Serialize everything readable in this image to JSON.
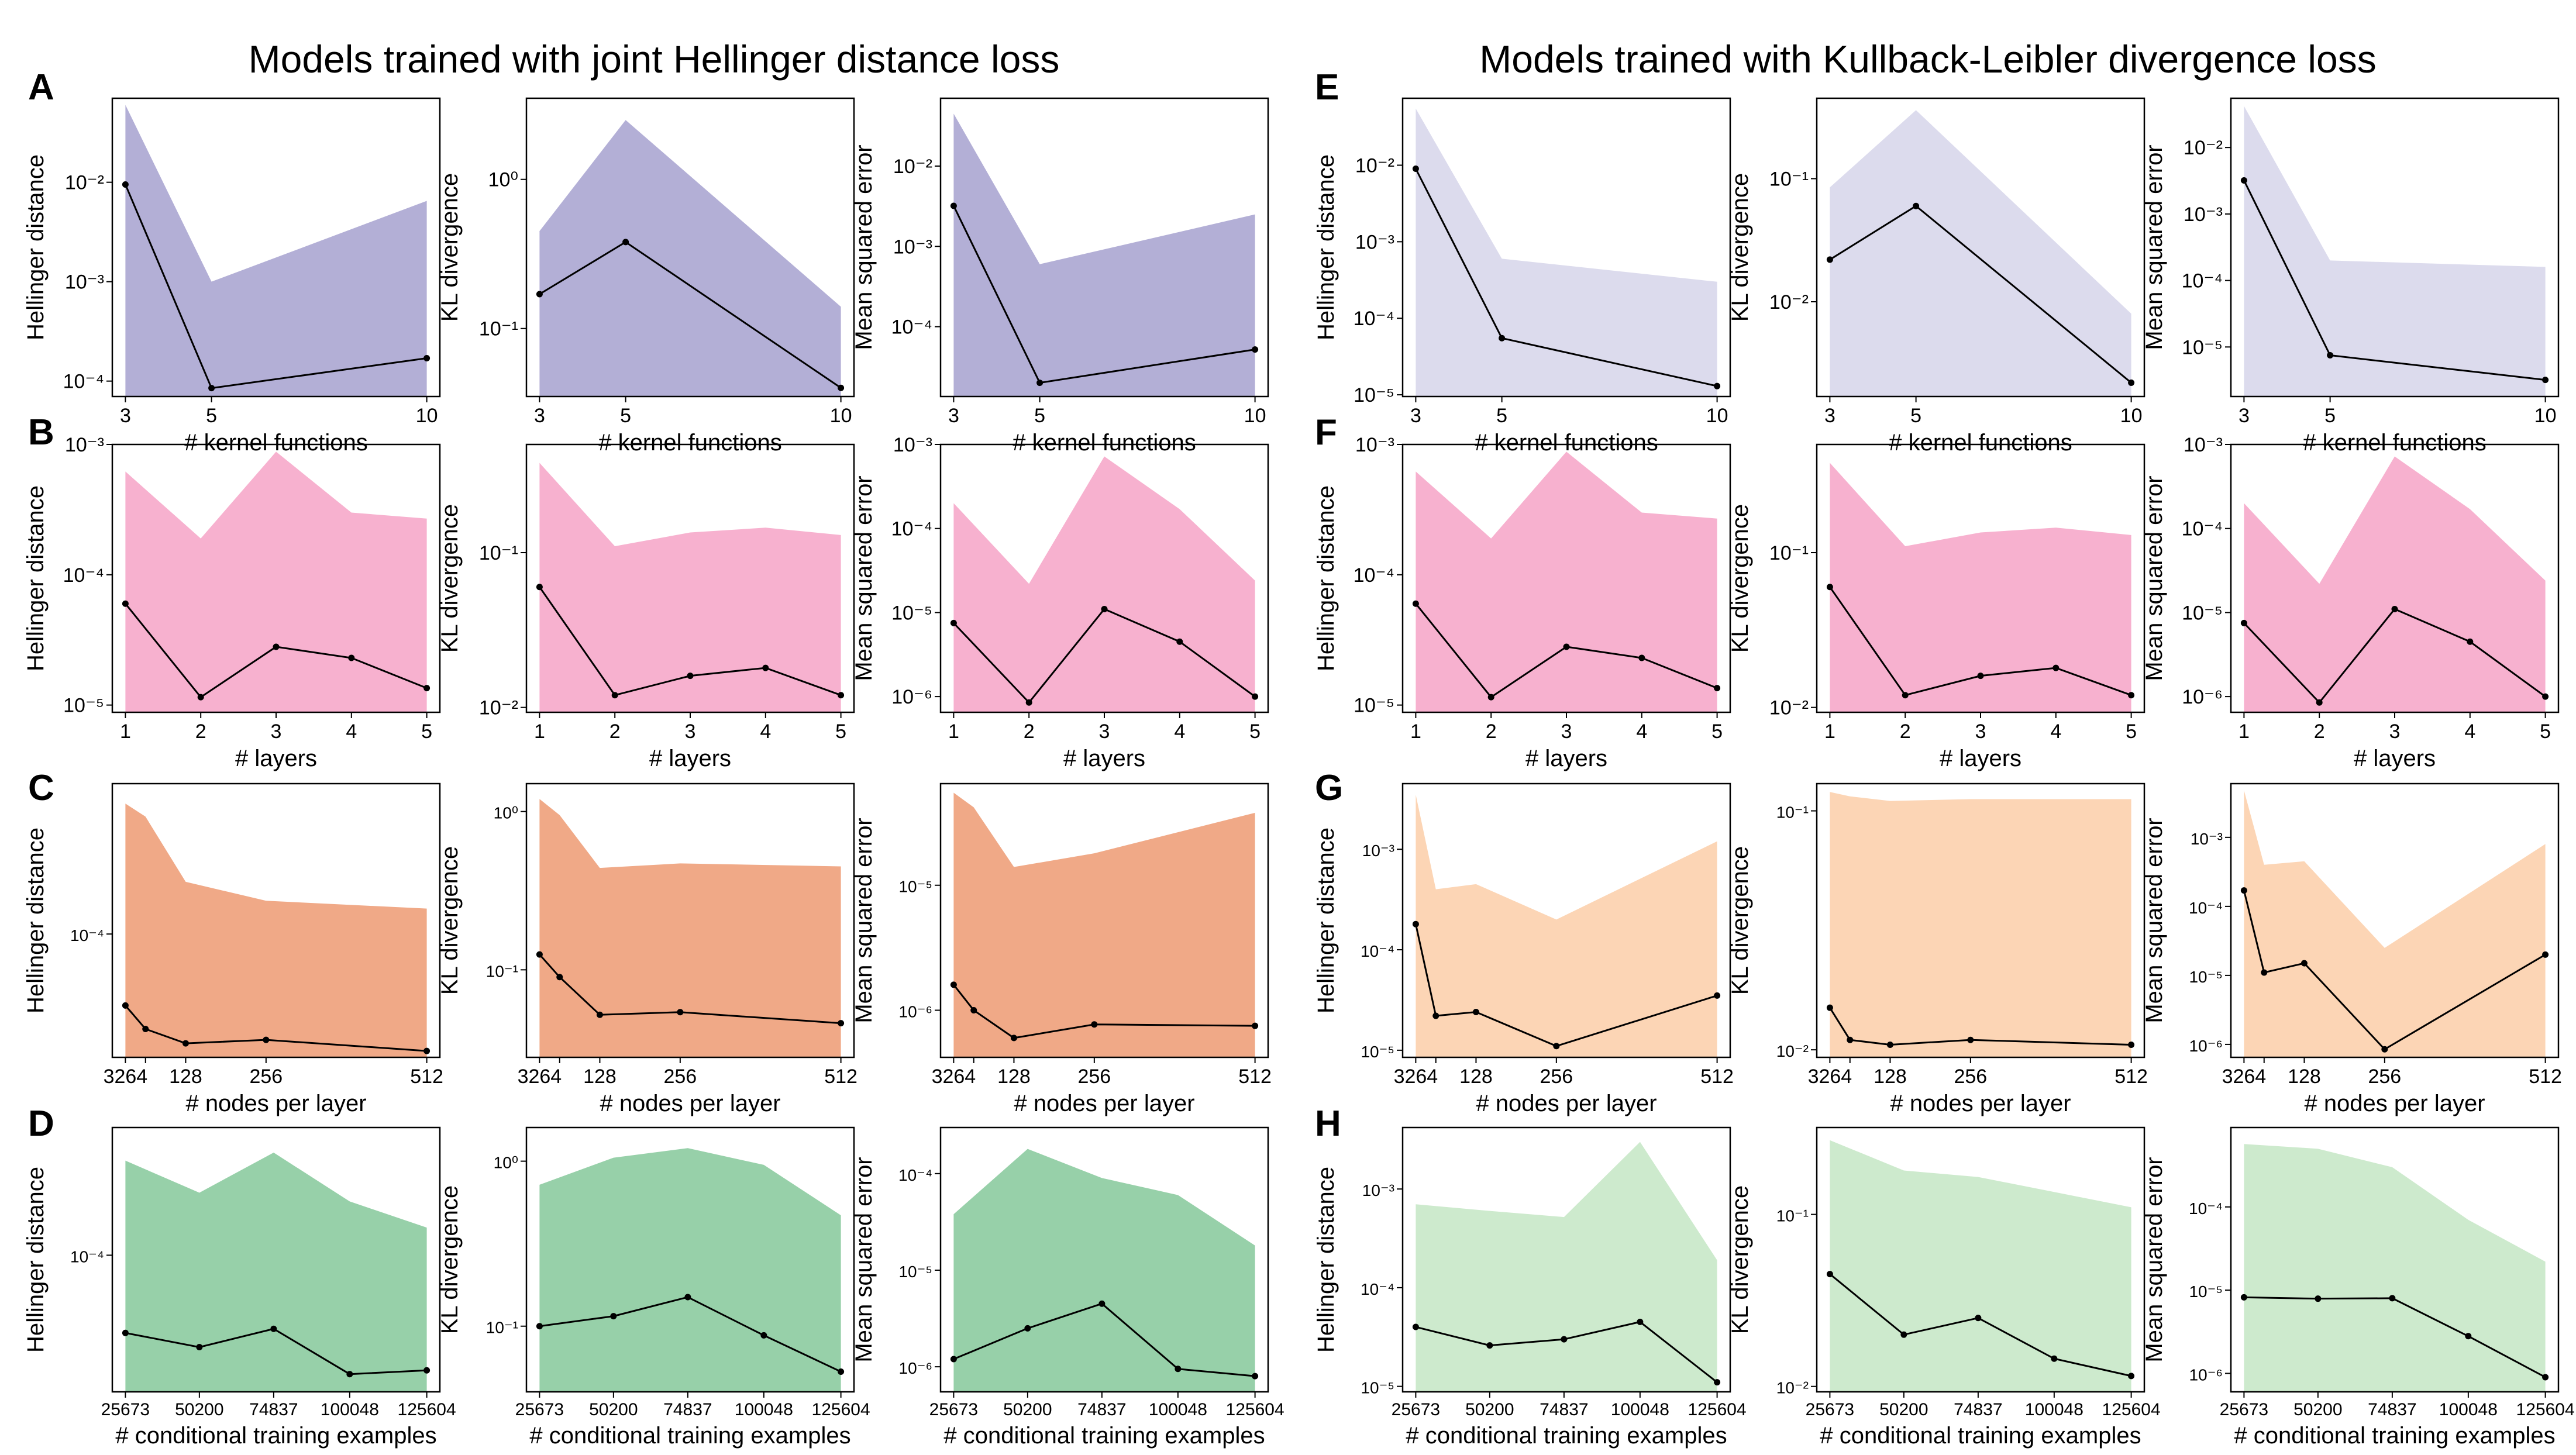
{
  "titles": {
    "left": "Models trained with joint Hellinger distance loss",
    "right": "Models trained with Kullback-Leibler divergence loss"
  },
  "row_letters": [
    "A",
    "B",
    "C",
    "D",
    "E",
    "F",
    "G",
    "H"
  ],
  "colors": {
    "kernel_joint": "#b3afd6",
    "kernel_kl": "#dcdbed",
    "layers": "#f7b1cf",
    "nodes_joint": "#f0a987",
    "nodes_kl": "#fcd5b5",
    "examples_joint": "#97d0a9",
    "examples_kl": "#cdeacd"
  },
  "chart_data": [
    {
      "type": "area",
      "group": "A",
      "xlabel": "# kernel functions",
      "ylabel": "Hellinger distance",
      "yscale": "log",
      "x": [
        3,
        5,
        10
      ],
      "xticks": [
        "3",
        "5",
        "10"
      ],
      "yticks": [
        {
          "v": 0.01,
          "label": "10⁻²"
        },
        {
          "v": 0.001,
          "label": "10⁻³"
        },
        {
          "v": 0.0001,
          "label": "10⁻⁴"
        }
      ],
      "ylim": [
        7e-05,
        0.07
      ],
      "upper": [
        0.06,
        0.001,
        0.0065
      ],
      "median": [
        0.0095,
        8.5e-05,
        0.00017
      ],
      "color": "kernel_joint"
    },
    {
      "type": "area",
      "group": "A",
      "xlabel": "# kernel functions",
      "ylabel": "KL divergence",
      "yscale": "log",
      "x": [
        3,
        5,
        10
      ],
      "xticks": [
        "3",
        "5",
        "10"
      ],
      "yticks": [
        {
          "v": 1,
          "label": "10⁰"
        },
        {
          "v": 0.1,
          "label": "10⁻¹"
        }
      ],
      "ylim": [
        0.035,
        3.5
      ],
      "upper": [
        0.45,
        2.5,
        0.14
      ],
      "median": [
        0.17,
        0.38,
        0.04
      ],
      "color": "kernel_joint"
    },
    {
      "type": "area",
      "group": "A",
      "xlabel": "# kernel functions",
      "ylabel": "Mean squared error",
      "yscale": "log",
      "x": [
        3,
        5,
        10
      ],
      "xticks": [
        "3",
        "5",
        "10"
      ],
      "yticks": [
        {
          "v": 0.01,
          "label": "10⁻²"
        },
        {
          "v": 0.001,
          "label": "10⁻³"
        },
        {
          "v": 0.0001,
          "label": "10⁻⁴"
        }
      ],
      "ylim": [
        1.35e-05,
        0.07
      ],
      "upper": [
        0.045,
        0.0006,
        0.0025
      ],
      "median": [
        0.0032,
        2e-05,
        5.2e-05
      ],
      "color": "kernel_joint"
    },
    {
      "type": "area",
      "group": "B",
      "xlabel": "# layers",
      "ylabel": "Hellinger distance",
      "yscale": "log",
      "x": [
        1,
        2,
        3,
        4,
        5
      ],
      "xticks": [
        "1",
        "2",
        "3",
        "4",
        "5"
      ],
      "yticks": [
        {
          "v": 0.001,
          "label": "10⁻³"
        },
        {
          "v": 0.0001,
          "label": "10⁻⁴"
        },
        {
          "v": 1e-05,
          "label": "10⁻⁵"
        }
      ],
      "ylim": [
        8.8e-06,
        0.001
      ],
      "upper": [
        0.00062,
        0.00019,
        0.00088,
        0.0003,
        0.00027
      ],
      "median": [
        6e-05,
        1.15e-05,
        2.8e-05,
        2.3e-05,
        1.35e-05
      ],
      "color": "layers"
    },
    {
      "type": "area",
      "group": "B",
      "xlabel": "# layers",
      "ylabel": "KL divergence",
      "yscale": "log",
      "x": [
        1,
        2,
        3,
        4,
        5
      ],
      "xticks": [
        "1",
        "2",
        "3",
        "4",
        "5"
      ],
      "yticks": [
        {
          "v": 0.1,
          "label": "10⁻¹"
        },
        {
          "v": 0.01,
          "label": "10⁻²"
        }
      ],
      "ylim": [
        0.0093,
        0.5
      ],
      "upper": [
        0.38,
        0.11,
        0.135,
        0.145,
        0.13
      ],
      "median": [
        0.06,
        0.012,
        0.016,
        0.018,
        0.012
      ],
      "color": "layers"
    },
    {
      "type": "area",
      "group": "B",
      "xlabel": "# layers",
      "ylabel": "Mean squared error",
      "yscale": "log",
      "x": [
        1,
        2,
        3,
        4,
        5
      ],
      "xticks": [
        "1",
        "2",
        "3",
        "4",
        "5"
      ],
      "yticks": [
        {
          "v": 0.001,
          "label": "10⁻³"
        },
        {
          "v": 0.0001,
          "label": "10⁻⁴"
        },
        {
          "v": 1e-05,
          "label": "10⁻⁵"
        },
        {
          "v": 1e-06,
          "label": "10⁻⁶"
        }
      ],
      "ylim": [
        6.5e-07,
        0.001
      ],
      "upper": [
        0.0002,
        2.2e-05,
        0.00072,
        0.00017,
        2.4e-05
      ],
      "median": [
        7.5e-06,
        8.5e-07,
        1.1e-05,
        4.5e-06,
        1e-06
      ],
      "color": "layers"
    },
    {
      "type": "area",
      "group": "C",
      "xlabel": "# nodes per layer",
      "ylabel": "Hellinger distance",
      "yscale": "log",
      "x": [
        32,
        64,
        128,
        256,
        512
      ],
      "xticks": [
        "3264",
        "",
        "128",
        "256",
        "512"
      ],
      "yticks": [
        {
          "v": 0.0001,
          "label": "10⁻⁴"
        }
      ],
      "ylim": [
        1.4e-05,
        0.0011
      ],
      "upper": [
        0.0008,
        0.00065,
        0.00023,
        0.00017,
        0.00015
      ],
      "median": [
        3.2e-05,
        2.2e-05,
        1.75e-05,
        1.85e-05,
        1.55e-05
      ],
      "color": "nodes_joint"
    },
    {
      "type": "area",
      "group": "C",
      "xlabel": "# nodes per layer",
      "ylabel": "KL divergence",
      "yscale": "log",
      "x": [
        32,
        64,
        128,
        256,
        512
      ],
      "xticks": [
        "3264",
        "",
        "128",
        "256",
        "512"
      ],
      "yticks": [
        {
          "v": 1,
          "label": "10⁰"
        },
        {
          "v": 0.1,
          "label": "10⁻¹"
        }
      ],
      "ylim": [
        0.028,
        1.5
      ],
      "upper": [
        1.2,
        0.95,
        0.44,
        0.47,
        0.45
      ],
      "median": [
        0.125,
        0.09,
        0.052,
        0.054,
        0.046
      ],
      "color": "nodes_joint"
    },
    {
      "type": "area",
      "group": "C",
      "xlabel": "# nodes per layer",
      "ylabel": "Mean squared error",
      "yscale": "log",
      "x": [
        32,
        64,
        128,
        256,
        512
      ],
      "xticks": [
        "3264",
        "",
        "128",
        "256",
        "512"
      ],
      "yticks": [
        {
          "v": 1e-05,
          "label": "10⁻⁵"
        },
        {
          "v": 1e-06,
          "label": "10⁻⁶"
        }
      ],
      "ylim": [
        4.2e-07,
        6.5e-05
      ],
      "upper": [
        5.5e-05,
        4.2e-05,
        1.4e-05,
        1.8e-05,
        3.8e-05
      ],
      "median": [
        1.6e-06,
        1e-06,
        6e-07,
        7.7e-07,
        7.5e-07
      ],
      "color": "nodes_joint"
    },
    {
      "type": "area",
      "group": "D",
      "xlabel": "# conditional training examples",
      "ylabel": "Hellinger distance",
      "yscale": "log",
      "x": [
        25673,
        50200,
        74837,
        100048,
        125604
      ],
      "xticks": [
        "25673",
        "50200",
        "74837",
        "100048",
        "125604"
      ],
      "yticks": [
        {
          "v": 0.0001,
          "label": "10⁻⁴"
        }
      ],
      "ylim": [
        1.35e-05,
        0.00065
      ],
      "upper": [
        0.0004,
        0.00025,
        0.00045,
        0.00022,
        0.00015
      ],
      "median": [
        3.2e-05,
        2.6e-05,
        3.4e-05,
        1.75e-05,
        1.85e-05
      ],
      "color": "examples_joint"
    },
    {
      "type": "area",
      "group": "D",
      "xlabel": "# conditional training examples",
      "ylabel": "KL divergence",
      "yscale": "log",
      "x": [
        25673,
        50200,
        74837,
        100048,
        125604
      ],
      "xticks": [
        "25673",
        "50200",
        "74837",
        "100048",
        "125604"
      ],
      "yticks": [
        {
          "v": 1,
          "label": "10⁰"
        },
        {
          "v": 0.1,
          "label": "10⁻¹"
        }
      ],
      "ylim": [
        0.04,
        1.6
      ],
      "upper": [
        0.72,
        1.05,
        1.2,
        0.95,
        0.47
      ],
      "median": [
        0.1,
        0.115,
        0.15,
        0.088,
        0.053
      ],
      "color": "examples_joint"
    },
    {
      "type": "area",
      "group": "D",
      "xlabel": "# conditional training examples",
      "ylabel": "Mean squared error",
      "yscale": "log",
      "x": [
        25673,
        50200,
        74837,
        100048,
        125604
      ],
      "xticks": [
        "25673",
        "50200",
        "74837",
        "100048",
        "125604"
      ],
      "yticks": [
        {
          "v": 0.0001,
          "label": "10⁻⁴"
        },
        {
          "v": 1e-05,
          "label": "10⁻⁵"
        },
        {
          "v": 1e-06,
          "label": "10⁻⁶"
        }
      ],
      "ylim": [
        5.5e-07,
        0.0003
      ],
      "upper": [
        3.8e-05,
        0.00018,
        9e-05,
        6e-05,
        1.8e-05
      ],
      "median": [
        1.2e-06,
        2.5e-06,
        4.5e-06,
        9.5e-07,
        8e-07
      ],
      "color": "examples_joint"
    },
    {
      "type": "area",
      "group": "E",
      "xlabel": "# kernel functions",
      "ylabel": "Hellinger distance",
      "yscale": "log",
      "x": [
        3,
        5,
        10
      ],
      "xticks": [
        "3",
        "5",
        "10"
      ],
      "yticks": [
        {
          "v": 0.01,
          "label": "10⁻²"
        },
        {
          "v": 0.001,
          "label": "10⁻³"
        },
        {
          "v": 0.0001,
          "label": "10⁻⁴"
        },
        {
          "v": 1e-05,
          "label": "10⁻⁵"
        }
      ],
      "ylim": [
        9.5e-06,
        0.075
      ],
      "upper": [
        0.055,
        0.0006,
        0.0003
      ],
      "median": [
        0.009,
        5.5e-05,
        1.3e-05
      ],
      "color": "kernel_kl"
    },
    {
      "type": "area",
      "group": "E",
      "xlabel": "# kernel functions",
      "ylabel": "KL divergence",
      "yscale": "log",
      "x": [
        3,
        5,
        10
      ],
      "xticks": [
        "3",
        "5",
        "10"
      ],
      "yticks": [
        {
          "v": 0.1,
          "label": "10⁻¹"
        },
        {
          "v": 0.01,
          "label": "10⁻²"
        }
      ],
      "ylim": [
        0.0017,
        0.45
      ],
      "upper": [
        0.085,
        0.36,
        0.008
      ],
      "median": [
        0.022,
        0.06,
        0.0022
      ],
      "color": "kernel_kl"
    },
    {
      "type": "area",
      "group": "E",
      "xlabel": "# kernel functions",
      "ylabel": "Mean squared error",
      "yscale": "log",
      "x": [
        3,
        5,
        10
      ],
      "xticks": [
        "3",
        "5",
        "10"
      ],
      "yticks": [
        {
          "v": 0.01,
          "label": "10⁻²"
        },
        {
          "v": 0.001,
          "label": "10⁻³"
        },
        {
          "v": 0.0001,
          "label": "10⁻⁴"
        },
        {
          "v": 1e-05,
          "label": "10⁻⁵"
        }
      ],
      "ylim": [
        1.8e-06,
        0.055
      ],
      "upper": [
        0.042,
        0.0002,
        0.00016
      ],
      "median": [
        0.0032,
        7.5e-06,
        3.2e-06
      ],
      "color": "kernel_kl"
    },
    {
      "type": "area",
      "group": "F",
      "xlabel": "# layers",
      "ylabel": "Hellinger distance",
      "yscale": "log",
      "x": [
        1,
        2,
        3,
        4,
        5
      ],
      "xticks": [
        "1",
        "2",
        "3",
        "4",
        "5"
      ],
      "yticks": [
        {
          "v": 0.001,
          "label": "10⁻³"
        },
        {
          "v": 0.0001,
          "label": "10⁻⁴"
        },
        {
          "v": 1e-05,
          "label": "10⁻⁵"
        }
      ],
      "ylim": [
        8.8e-06,
        0.001
      ],
      "upper": [
        0.00062,
        0.00019,
        0.00088,
        0.0003,
        0.00027
      ],
      "median": [
        6e-05,
        1.15e-05,
        2.8e-05,
        2.3e-05,
        1.35e-05
      ],
      "color": "layers"
    },
    {
      "type": "area",
      "group": "F",
      "xlabel": "# layers",
      "ylabel": "KL divergence",
      "yscale": "log",
      "x": [
        1,
        2,
        3,
        4,
        5
      ],
      "xticks": [
        "1",
        "2",
        "3",
        "4",
        "5"
      ],
      "yticks": [
        {
          "v": 0.1,
          "label": "10⁻¹"
        },
        {
          "v": 0.01,
          "label": "10⁻²"
        }
      ],
      "ylim": [
        0.0093,
        0.5
      ],
      "upper": [
        0.38,
        0.11,
        0.135,
        0.145,
        0.13
      ],
      "median": [
        0.06,
        0.012,
        0.016,
        0.018,
        0.012
      ],
      "color": "layers"
    },
    {
      "type": "area",
      "group": "F",
      "xlabel": "# layers",
      "ylabel": "Mean squared error",
      "yscale": "log",
      "x": [
        1,
        2,
        3,
        4,
        5
      ],
      "xticks": [
        "1",
        "2",
        "3",
        "4",
        "5"
      ],
      "yticks": [
        {
          "v": 0.001,
          "label": "10⁻³"
        },
        {
          "v": 0.0001,
          "label": "10⁻⁴"
        },
        {
          "v": 1e-05,
          "label": "10⁻⁵"
        },
        {
          "v": 1e-06,
          "label": "10⁻⁶"
        }
      ],
      "ylim": [
        6.5e-07,
        0.001
      ],
      "upper": [
        0.0002,
        2.2e-05,
        0.00072,
        0.00017,
        2.4e-05
      ],
      "median": [
        7.5e-06,
        8.5e-07,
        1.1e-05,
        4.5e-06,
        1e-06
      ],
      "color": "layers"
    },
    {
      "type": "area",
      "group": "G",
      "xlabel": "# nodes per layer",
      "ylabel": "Hellinger distance",
      "yscale": "log",
      "x": [
        32,
        64,
        128,
        256,
        512
      ],
      "xticks": [
        "3264",
        "",
        "128",
        "256",
        "512"
      ],
      "yticks": [
        {
          "v": 0.001,
          "label": "10⁻³"
        },
        {
          "v": 0.0001,
          "label": "10⁻⁴"
        },
        {
          "v": 1e-05,
          "label": "10⁻⁵"
        }
      ],
      "ylim": [
        8.5e-06,
        0.0045
      ],
      "upper": [
        0.0035,
        0.0004,
        0.00045,
        0.0002,
        0.0012
      ],
      "median": [
        0.00018,
        2.2e-05,
        2.4e-05,
        1.1e-05,
        3.5e-05
      ],
      "color": "nodes_kl"
    },
    {
      "type": "area",
      "group": "G",
      "xlabel": "# nodes per layer",
      "ylabel": "KL divergence",
      "yscale": "log",
      "x": [
        32,
        64,
        128,
        256,
        512
      ],
      "xticks": [
        "3264",
        "",
        "128",
        "256",
        "512"
      ],
      "yticks": [
        {
          "v": 0.1,
          "label": "10⁻¹"
        },
        {
          "v": 0.01,
          "label": "10⁻²"
        }
      ],
      "ylim": [
        0.0093,
        0.13
      ],
      "upper": [
        0.12,
        0.115,
        0.11,
        0.112,
        0.112
      ],
      "median": [
        0.015,
        0.011,
        0.0105,
        0.011,
        0.0105
      ],
      "color": "nodes_kl"
    },
    {
      "type": "area",
      "group": "G",
      "xlabel": "# nodes per layer",
      "ylabel": "Mean squared error",
      "yscale": "log",
      "x": [
        32,
        64,
        128,
        256,
        512
      ],
      "xticks": [
        "3264",
        "",
        "128",
        "256",
        "512"
      ],
      "yticks": [
        {
          "v": 0.001,
          "label": "10⁻³"
        },
        {
          "v": 0.0001,
          "label": "10⁻⁴"
        },
        {
          "v": 1e-05,
          "label": "10⁻⁵"
        },
        {
          "v": 1e-06,
          "label": "10⁻⁶"
        }
      ],
      "ylim": [
        6.5e-07,
        0.006
      ],
      "upper": [
        0.0048,
        0.0004,
        0.00045,
        2.5e-05,
        0.0008
      ],
      "median": [
        0.00017,
        1.1e-05,
        1.5e-05,
        8.5e-07,
        2e-05
      ],
      "color": "nodes_kl"
    },
    {
      "type": "area",
      "group": "H",
      "xlabel": "# conditional training examples",
      "ylabel": "Hellinger distance",
      "yscale": "log",
      "x": [
        25673,
        50200,
        74837,
        100048,
        125604
      ],
      "xticks": [
        "25673",
        "50200",
        "74837",
        "100048",
        "125604"
      ],
      "yticks": [
        {
          "v": 0.001,
          "label": "10⁻³"
        },
        {
          "v": 0.0001,
          "label": "10⁻⁴"
        },
        {
          "v": 1e-05,
          "label": "10⁻⁵"
        }
      ],
      "ylim": [
        8.8e-06,
        0.0042
      ],
      "upper": [
        0.0007,
        0.0006,
        0.00052,
        0.003,
        0.00019
      ],
      "median": [
        4e-05,
        2.6e-05,
        3e-05,
        4.5e-05,
        1.1e-05
      ],
      "color": "examples_kl"
    },
    {
      "type": "area",
      "group": "H",
      "xlabel": "# conditional training examples",
      "ylabel": "KL divergence",
      "yscale": "log",
      "x": [
        25673,
        50200,
        74837,
        100048,
        125604
      ],
      "xticks": [
        "25673",
        "50200",
        "74837",
        "100048",
        "125604"
      ],
      "yticks": [
        {
          "v": 0.1,
          "label": "10⁻¹"
        },
        {
          "v": 0.01,
          "label": "10⁻²"
        }
      ],
      "ylim": [
        0.0093,
        0.32
      ],
      "upper": [
        0.27,
        0.18,
        0.165,
        0.135,
        0.11
      ],
      "median": [
        0.045,
        0.02,
        0.025,
        0.0145,
        0.0115
      ],
      "color": "examples_kl"
    },
    {
      "type": "area",
      "group": "H",
      "xlabel": "# conditional training examples",
      "ylabel": "Mean squared error",
      "yscale": "log",
      "x": [
        25673,
        50200,
        74837,
        100048,
        125604
      ],
      "xticks": [
        "25673",
        "50200",
        "74837",
        "100048",
        "125604"
      ],
      "yticks": [
        {
          "v": 0.0001,
          "label": "10⁻⁴"
        },
        {
          "v": 1e-05,
          "label": "10⁻⁵"
        },
        {
          "v": 1e-06,
          "label": "10⁻⁶"
        }
      ],
      "ylim": [
        6e-07,
        0.0009
      ],
      "upper": [
        0.00057,
        0.0005,
        0.0003,
        7e-05,
        2.2e-05
      ],
      "median": [
        8.2e-06,
        7.9e-06,
        8e-06,
        2.8e-06,
        9e-07
      ],
      "color": "examples_kl"
    }
  ]
}
